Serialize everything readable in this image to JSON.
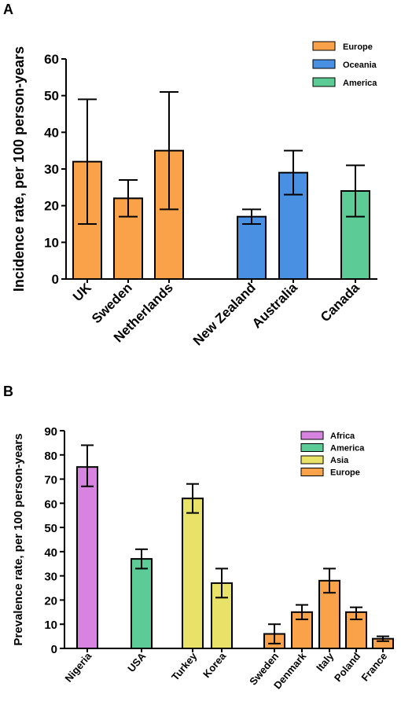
{
  "chart_data": [
    {
      "panel": "A",
      "type": "bar",
      "title": "",
      "ylabel": "Incidence rate, per 100 person-years",
      "xlabel": "",
      "ylim": [
        0,
        60
      ],
      "yticks": [
        0,
        10,
        20,
        30,
        40,
        50,
        60
      ],
      "grid": false,
      "legend_position": "top-right",
      "legend": [
        {
          "label": "Europe",
          "color": "#F9A24A"
        },
        {
          "label": "Oceania",
          "color": "#4A90E2"
        },
        {
          "label": "America",
          "color": "#5DCB95"
        }
      ],
      "categories": [
        "UK",
        "Sweden",
        "Netherlands",
        "New Zealand",
        "Australia",
        "Canada"
      ],
      "values": [
        32,
        22,
        35,
        17,
        29,
        24
      ],
      "error_low": [
        15,
        17,
        19,
        15,
        23,
        17
      ],
      "error_high": [
        49,
        27,
        51,
        19,
        35,
        31
      ],
      "groups": [
        "Europe",
        "Europe",
        "Europe",
        "Oceania",
        "Oceania",
        "America"
      ]
    },
    {
      "panel": "B",
      "type": "bar",
      "title": "",
      "ylabel": "Prevalence rate, per 100 person-years",
      "xlabel": "",
      "ylim": [
        0,
        90
      ],
      "yticks": [
        0,
        10,
        20,
        30,
        40,
        50,
        60,
        70,
        80,
        90
      ],
      "grid": false,
      "legend_position": "top-right",
      "legend": [
        {
          "label": "Africa",
          "color": "#D783E0"
        },
        {
          "label": "America",
          "color": "#5DCB95"
        },
        {
          "label": "Asia",
          "color": "#E8E368"
        },
        {
          "label": "Europe",
          "color": "#F9A24A"
        }
      ],
      "categories": [
        "Nigeria",
        "USA",
        "Turkey",
        "Korea",
        "Sweden",
        "Denmark",
        "Italy",
        "Poland",
        "France"
      ],
      "values": [
        75,
        37,
        62,
        27,
        6,
        15,
        28,
        15,
        4
      ],
      "error_low": [
        67,
        33,
        56,
        21,
        2,
        12,
        23,
        12,
        3
      ],
      "error_high": [
        84,
        41,
        68,
        33,
        10,
        18,
        33,
        17,
        5
      ],
      "groups": [
        "Africa",
        "America",
        "Asia",
        "Asia",
        "Europe",
        "Europe",
        "Europe",
        "Europe",
        "Europe"
      ]
    }
  ]
}
